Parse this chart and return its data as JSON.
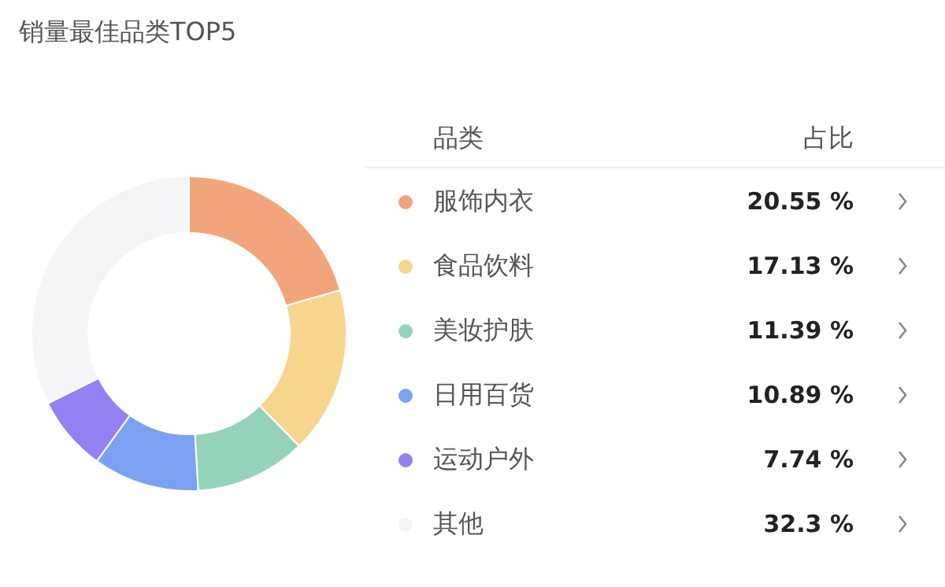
{
  "chart_data": {
    "type": "donut",
    "title": "销量最佳品类TOP5",
    "legend_title": "品类",
    "annotations": [
      "占比"
    ],
    "categories": [
      "服饰内衣",
      "食品饮料",
      "美妆护肤",
      "日用百货",
      "运动户外",
      "其他"
    ],
    "values": [
      20.55,
      17.13,
      11.39,
      10.89,
      7.74,
      32.3
    ],
    "value_labels": [
      "20.55 %",
      "17.13 %",
      "11.39 %",
      "10.89 %",
      "7.74 %",
      "32.3 %"
    ],
    "colors": [
      "#f2a57a",
      "#f8d58c",
      "#94d3ba",
      "#7ba2f2",
      "#9381f4",
      "#f4f5f7"
    ],
    "legend": "right"
  }
}
